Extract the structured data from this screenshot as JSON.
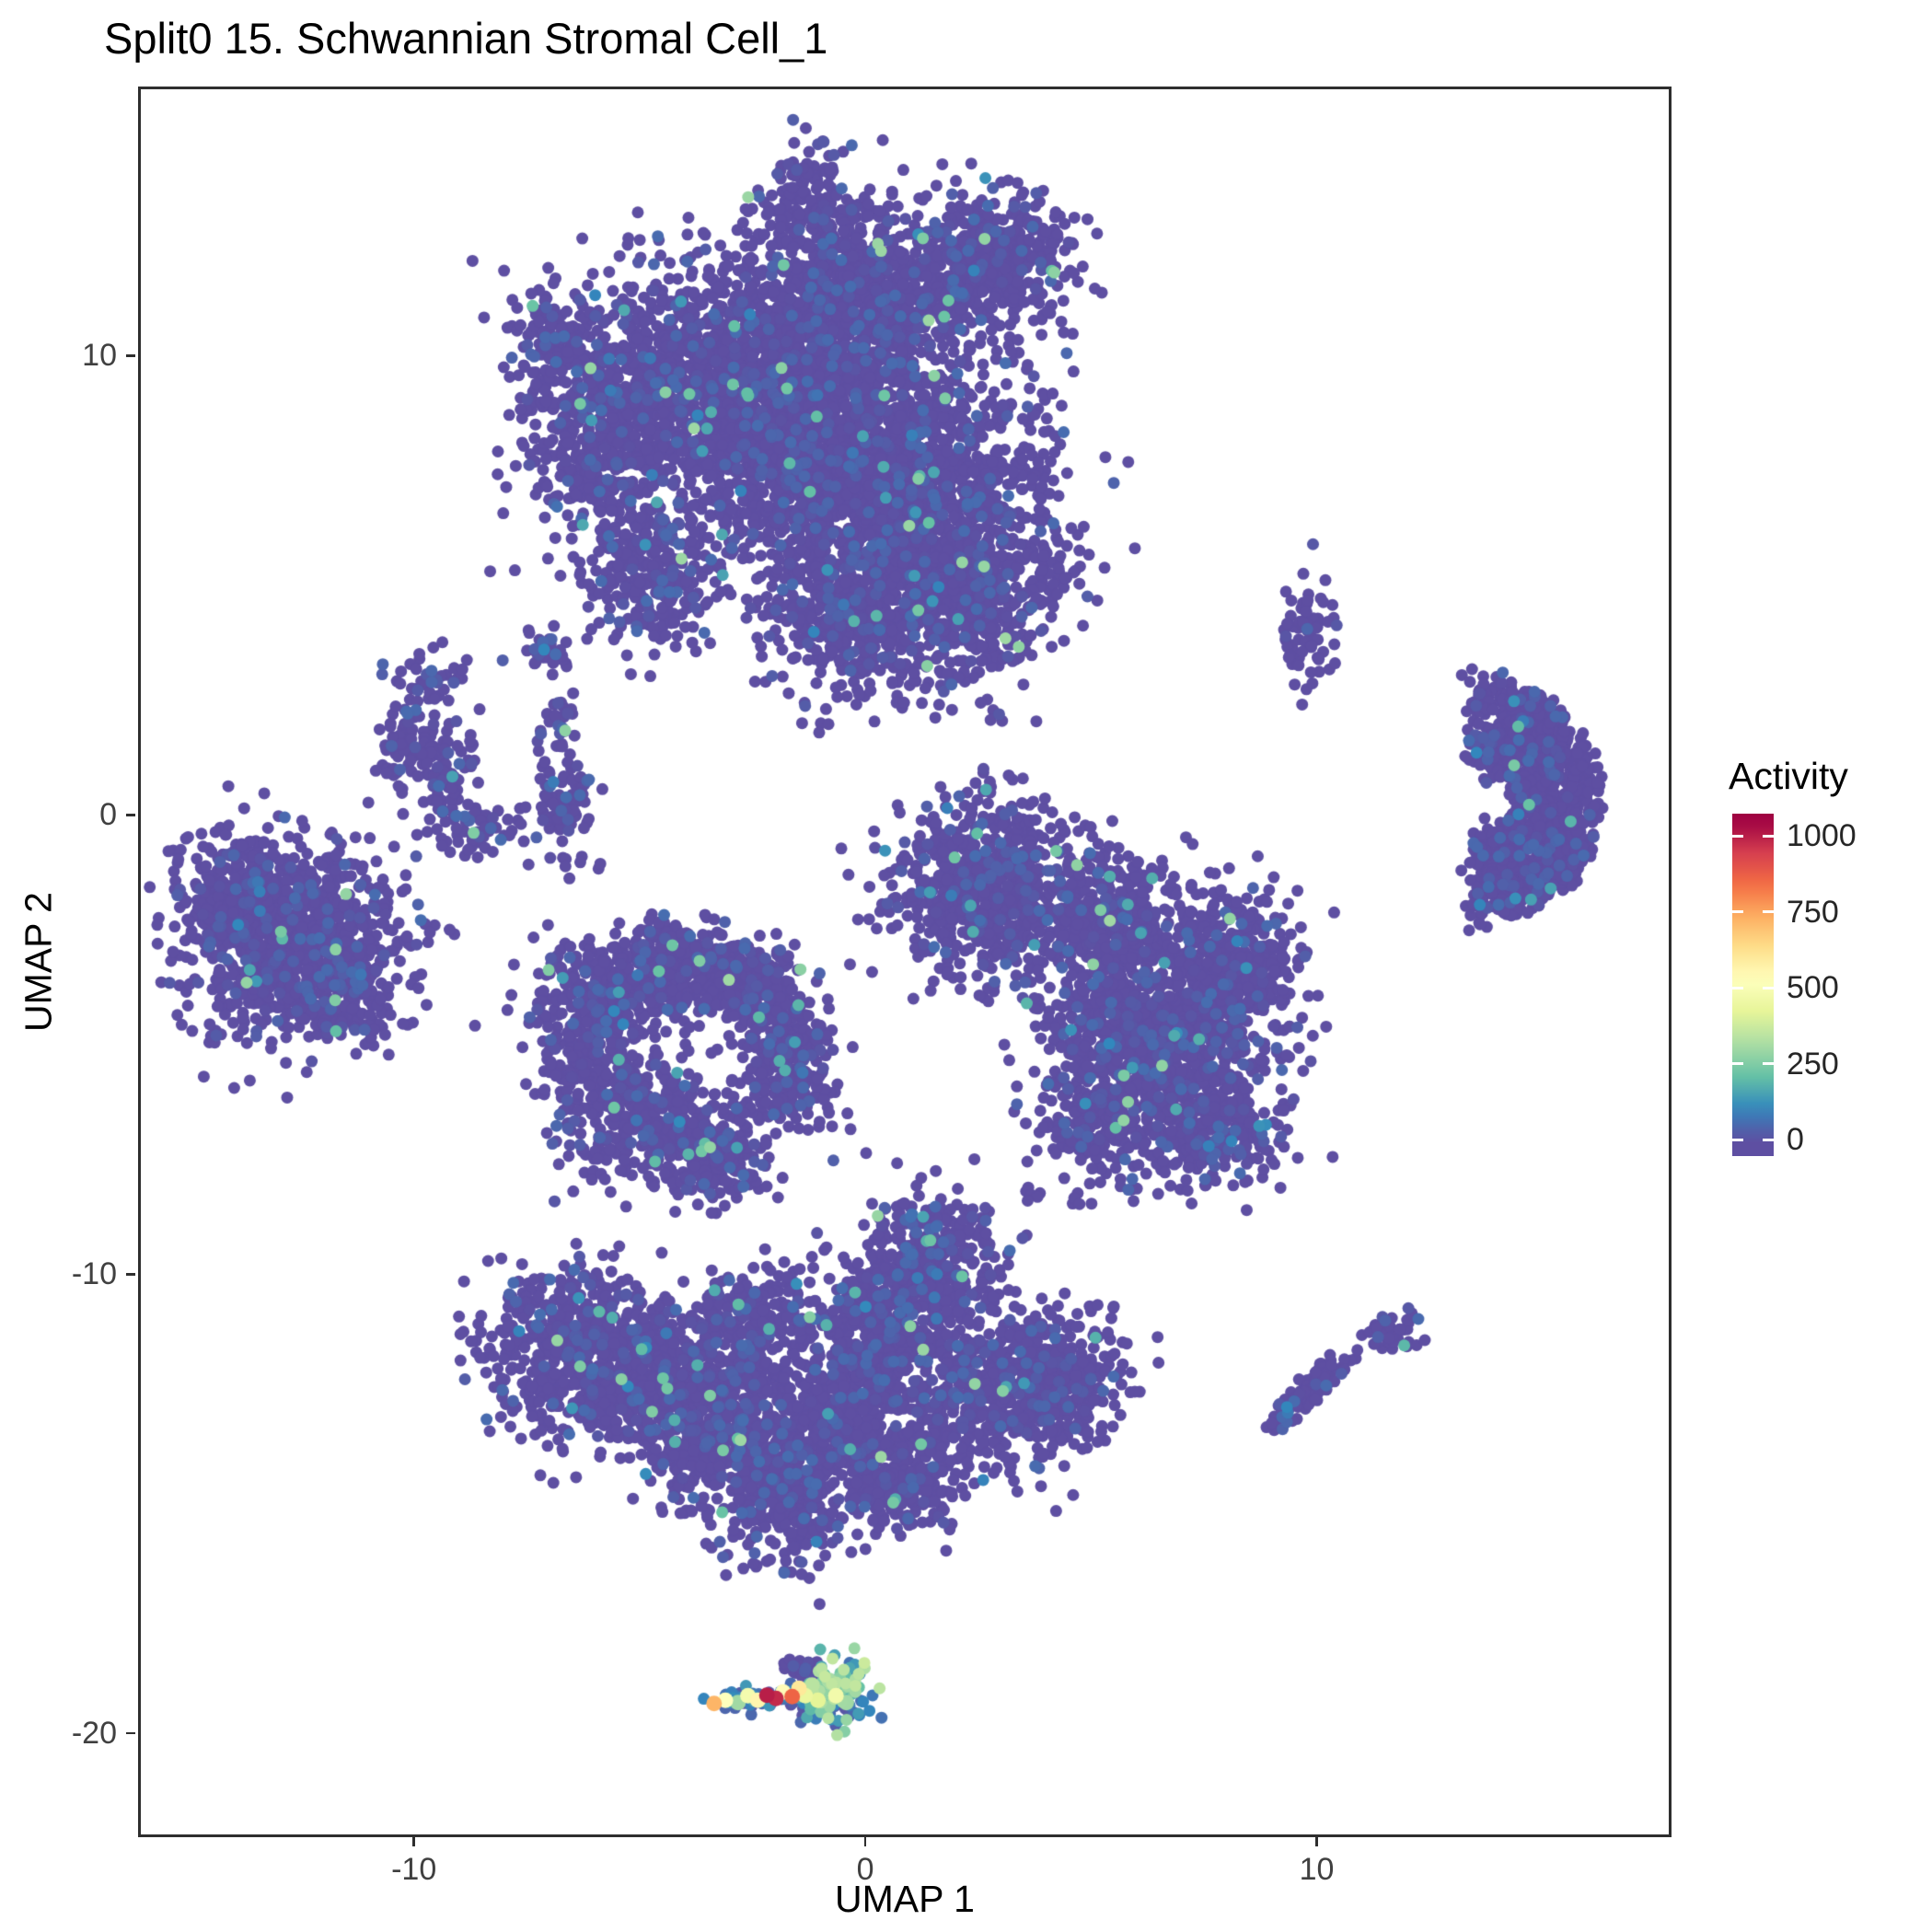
{
  "title": "Split0 15. Schwannian Stromal Cell_1",
  "chart_data": {
    "type": "scatter",
    "title": "Split0 15. Schwannian Stromal Cell_1",
    "xlabel": "UMAP 1",
    "ylabel": "UMAP 2",
    "background": "#ffffff",
    "axes": {
      "x": {
        "min": -16.05,
        "max": 17.8,
        "ticks": [
          {
            "label": "-10",
            "value": -10
          },
          {
            "label": "0",
            "value": 0
          },
          {
            "label": "10",
            "value": 10
          }
        ]
      },
      "y": {
        "min": -22.2,
        "max": 15.8,
        "ticks": [
          {
            "label": "10",
            "value": 10
          },
          {
            "label": "0",
            "value": 0
          },
          {
            "label": "-10",
            "value": -10
          },
          {
            "label": "-20",
            "value": -20
          }
        ]
      }
    },
    "legend": {
      "title": "Activity",
      "position": "right",
      "ticks": [
        {
          "label": "1000",
          "value": 1000
        },
        {
          "label": "750",
          "value": 750
        },
        {
          "label": "500",
          "value": 500
        },
        {
          "label": "250",
          "value": 250
        },
        {
          "label": "0",
          "value": 0
        }
      ]
    },
    "colormap": {
      "name": "spectral-reversed",
      "domain": [
        0,
        1050
      ],
      "stops": [
        {
          "t": 0.0,
          "color": "#5e4fa2"
        },
        {
          "t": 0.1,
          "color": "#3288bd"
        },
        {
          "t": 0.2,
          "color": "#66c2a5"
        },
        {
          "t": 0.3,
          "color": "#abdda4"
        },
        {
          "t": 0.4,
          "color": "#e6f598"
        },
        {
          "t": 0.5,
          "color": "#ffffbf"
        },
        {
          "t": 0.6,
          "color": "#fee08b"
        },
        {
          "t": 0.7,
          "color": "#fdae61"
        },
        {
          "t": 0.8,
          "color": "#f46d43"
        },
        {
          "t": 0.9,
          "color": "#d53e4f"
        },
        {
          "t": 1.0,
          "color": "#9e0142"
        }
      ]
    },
    "style": {
      "panel_border": "#2e2e2e",
      "tick_color": "#2e2e2e",
      "tick_label_color": "#404040",
      "title_color": "#000000",
      "point_base_color": "#5e4fa2"
    },
    "seed": 42,
    "point_radius": 6.5,
    "hot_point_radius": 8.5,
    "clusters": [
      {
        "cx": -1.3,
        "cy": 13.3,
        "sx": 0.5,
        "sy": 0.7,
        "n": 150
      },
      {
        "cx": -0.2,
        "cy": 11.3,
        "sx": 1.2,
        "sy": 1.0,
        "n": 700
      },
      {
        "cx": 2.4,
        "cy": 11.8,
        "sx": 1.0,
        "sy": 0.8,
        "n": 350
      },
      {
        "cx": 3.3,
        "cy": 12.4,
        "sx": 0.7,
        "sy": 0.6,
        "n": 150
      },
      {
        "cx": -3.5,
        "cy": 9.5,
        "sx": 1.6,
        "sy": 1.3,
        "n": 1200
      },
      {
        "cx": -0.5,
        "cy": 8.0,
        "sx": 1.8,
        "sy": 1.6,
        "n": 1800
      },
      {
        "cx": 1.5,
        "cy": 6.0,
        "sx": 1.4,
        "sy": 1.3,
        "n": 900
      },
      {
        "cx": 2.3,
        "cy": 4.4,
        "sx": 0.9,
        "sy": 0.9,
        "n": 300
      },
      {
        "cx": -5.8,
        "cy": 8.2,
        "sx": 0.9,
        "sy": 1.1,
        "n": 400
      },
      {
        "cx": -6.9,
        "cy": 10.3,
        "sx": 0.5,
        "sy": 0.7,
        "n": 120
      },
      {
        "cx": -4.8,
        "cy": 5.2,
        "sx": 0.7,
        "sy": 0.8,
        "n": 250
      },
      {
        "cx": -0.3,
        "cy": 4.3,
        "sx": 0.9,
        "sy": 0.9,
        "n": 400
      },
      {
        "cx": -9.6,
        "cy": 2.9,
        "sx": 0.35,
        "sy": 0.45,
        "n": 50
      },
      {
        "cx": -10.1,
        "cy": 1.4,
        "sx": 0.45,
        "sy": 0.5,
        "n": 80
      },
      {
        "cx": -9.3,
        "cy": 0.9,
        "sx": 0.4,
        "sy": 0.4,
        "n": 60
      },
      {
        "cx": -8.6,
        "cy": -0.3,
        "sx": 0.55,
        "sy": 0.3,
        "n": 60
      },
      {
        "cx": -7.1,
        "cy": 3.6,
        "sx": 0.3,
        "sy": 0.3,
        "n": 35
      },
      {
        "cx": -6.8,
        "cy": 2.0,
        "sx": 0.25,
        "sy": 0.3,
        "n": 25
      },
      {
        "cx": -6.6,
        "cy": 0.3,
        "sx": 0.3,
        "sy": 0.7,
        "n": 90
      },
      {
        "cx": -12.7,
        "cy": -2.6,
        "sx": 1.2,
        "sy": 1.1,
        "n": 900
      },
      {
        "cx": -13.8,
        "cy": -1.8,
        "sx": 0.6,
        "sy": 0.6,
        "n": 200
      },
      {
        "cx": -11.6,
        "cy": -3.8,
        "sx": 0.6,
        "sy": 0.6,
        "n": 200
      },
      {
        "cx": -5.6,
        "cy": -3.9,
        "sx": 0.8,
        "sy": 0.6,
        "n": 300
      },
      {
        "cx": -4.3,
        "cy": -3.3,
        "sx": 0.7,
        "sy": 0.5,
        "n": 250
      },
      {
        "cx": -2.8,
        "cy": -3.6,
        "sx": 0.6,
        "sy": 0.5,
        "n": 200
      },
      {
        "cx": -1.8,
        "cy": -4.6,
        "sx": 0.5,
        "sy": 0.6,
        "n": 180
      },
      {
        "cx": -1.6,
        "cy": -5.8,
        "sx": 0.5,
        "sy": 0.6,
        "n": 150
      },
      {
        "cx": -4.9,
        "cy": -6.6,
        "sx": 0.9,
        "sy": 0.7,
        "n": 350
      },
      {
        "cx": -3.2,
        "cy": -7.4,
        "sx": 0.7,
        "sy": 0.5,
        "n": 220
      },
      {
        "cx": -6.2,
        "cy": -5.3,
        "sx": 0.5,
        "sy": 0.6,
        "n": 150
      },
      {
        "cx": -6.9,
        "cy": -3.2,
        "sx": 0.12,
        "sy": 0.1,
        "n": 6
      },
      {
        "cx": 2.6,
        "cy": -1.6,
        "sx": 1.0,
        "sy": 1.0,
        "n": 700
      },
      {
        "cx": 6.6,
        "cy": -4.8,
        "sx": 1.3,
        "sy": 1.2,
        "n": 1100
      },
      {
        "cx": 5.4,
        "cy": -2.2,
        "sx": 0.8,
        "sy": 0.8,
        "n": 350
      },
      {
        "cx": 8.2,
        "cy": -3.3,
        "sx": 0.7,
        "sy": 0.8,
        "n": 300
      },
      {
        "cx": 7.6,
        "cy": -6.8,
        "sx": 0.8,
        "sy": 0.6,
        "n": 250
      },
      {
        "cx": 5.0,
        "cy": -6.7,
        "sx": 0.6,
        "sy": 0.5,
        "n": 180
      },
      {
        "cx": 3.6,
        "cy": -8.2,
        "sx": 0.12,
        "sy": 0.1,
        "n": 5
      },
      {
        "cx": 2.3,
        "cy": -8.66,
        "sx": 0.1,
        "sy": 0.08,
        "n": 4
      },
      {
        "cx": 9.8,
        "cy": 4.0,
        "sx": 0.28,
        "sy": 0.6,
        "n": 70
      },
      {
        "type": "arc",
        "cx": 13.6,
        "cy": 0.3,
        "rIn": 0.7,
        "rOut": 2.6,
        "a0": -95,
        "a1": 95,
        "n": 1100,
        "jitter": 0.15
      },
      {
        "cx": -6.3,
        "cy": -11.6,
        "sx": 1.0,
        "sy": 0.9,
        "n": 600
      },
      {
        "cx": -4.6,
        "cy": -12.4,
        "sx": 0.8,
        "sy": 0.8,
        "n": 400
      },
      {
        "cx": -3.2,
        "cy": -13.3,
        "sx": 0.8,
        "sy": 0.9,
        "n": 450
      },
      {
        "cx": -1.8,
        "cy": -14.6,
        "sx": 0.8,
        "sy": 0.8,
        "n": 400
      },
      {
        "cx": -0.6,
        "cy": -13.2,
        "sx": 0.7,
        "sy": 0.8,
        "n": 350
      },
      {
        "cx": 0.3,
        "cy": -11.4,
        "sx": 0.8,
        "sy": 0.9,
        "n": 450
      },
      {
        "cx": 1.6,
        "cy": -9.7,
        "sx": 0.7,
        "sy": 0.7,
        "n": 350
      },
      {
        "cx": 2.8,
        "cy": -12.6,
        "sx": 0.9,
        "sy": 0.8,
        "n": 450
      },
      {
        "cx": 4.3,
        "cy": -12.2,
        "sx": 0.7,
        "sy": 0.7,
        "n": 300
      },
      {
        "cx": 0.9,
        "cy": -14.5,
        "sx": 0.6,
        "sy": 0.6,
        "n": 220
      },
      {
        "cx": -2.4,
        "cy": -11.0,
        "sx": 0.7,
        "sy": 0.6,
        "n": 250
      },
      {
        "cx": 4.8,
        "cy": -8.4,
        "sx": 0.1,
        "sy": 0.1,
        "n": 5
      },
      {
        "cx": 9.8,
        "cy": -12.55,
        "sx": 0.6,
        "sy": 0.18,
        "rot": 45,
        "n": 90
      },
      {
        "cx": 11.7,
        "cy": -11.25,
        "sx": 0.38,
        "sy": 0.2,
        "n": 40
      },
      {
        "cx": -0.75,
        "cy": -19.15,
        "sx": 0.42,
        "sy": 0.38,
        "n": 160,
        "amax": 380
      },
      {
        "cx": -2.2,
        "cy": -19.25,
        "sx": 0.7,
        "sy": 0.12,
        "n": 60,
        "amax": 150
      },
      {
        "cx": -1.5,
        "cy": -18.55,
        "sx": 0.18,
        "sy": 0.13,
        "n": 20
      }
    ],
    "hot_points": [
      {
        "x": -3.35,
        "y": -19.35,
        "a": 720
      },
      {
        "x": -3.1,
        "y": -19.28,
        "a": 520
      },
      {
        "x": -2.82,
        "y": -19.33,
        "a": 300
      },
      {
        "x": -2.6,
        "y": -19.18,
        "a": 480
      },
      {
        "x": -2.38,
        "y": -19.28,
        "a": 560
      },
      {
        "x": -2.18,
        "y": -19.17,
        "a": 1000
      },
      {
        "x": -1.98,
        "y": -19.24,
        "a": 980
      },
      {
        "x": -1.82,
        "y": -19.1,
        "a": 540
      },
      {
        "x": -1.62,
        "y": -19.2,
        "a": 860
      },
      {
        "x": -1.47,
        "y": -19.02,
        "a": 600
      },
      {
        "x": -1.33,
        "y": -19.18,
        "a": 440
      },
      {
        "x": -1.18,
        "y": -18.95,
        "a": 340
      },
      {
        "x": -1.05,
        "y": -19.28,
        "a": 420
      },
      {
        "x": -0.92,
        "y": -19.05,
        "a": 260
      },
      {
        "x": -0.8,
        "y": -18.85,
        "a": 310
      },
      {
        "x": -0.65,
        "y": -19.18,
        "a": 470
      },
      {
        "x": -0.52,
        "y": -18.95,
        "a": 210
      },
      {
        "x": -0.42,
        "y": -19.33,
        "a": 300
      },
      {
        "x": -0.3,
        "y": -19.1,
        "a": 180
      }
    ]
  }
}
